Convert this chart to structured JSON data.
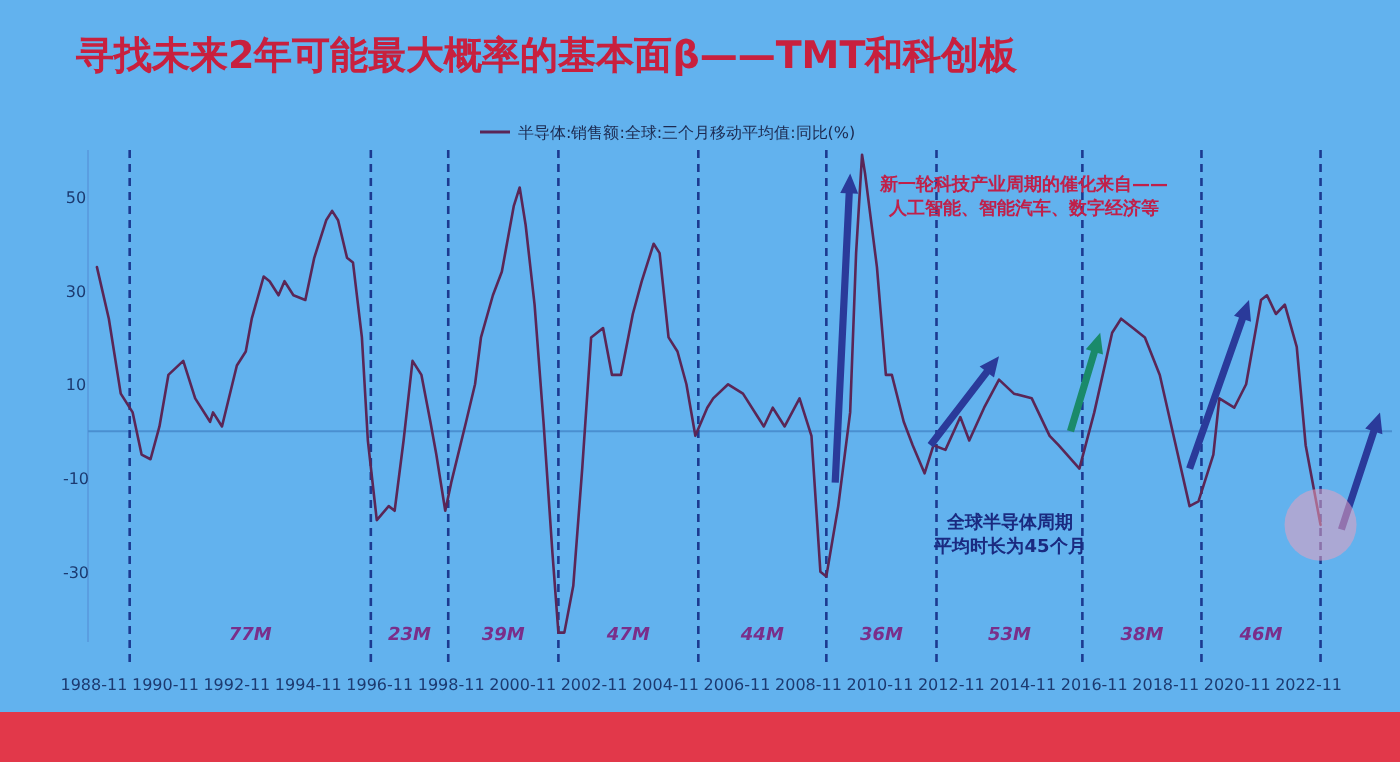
{
  "chart_data": {
    "type": "line",
    "title": "寻找未来2年可能最大概率的基本面β——TMT和科创板",
    "legend": "top",
    "series": [
      {
        "name": "半导体:销售额:全球:三个月移动平均值:同比(%)",
        "color": "#5a2656",
        "x": [
          "1988-12",
          "1989-04",
          "1989-08",
          "1989-12",
          "1990-03",
          "1990-06",
          "1990-09",
          "1990-12",
          "1991-05",
          "1991-09",
          "1992-02",
          "1992-03",
          "1992-06",
          "1992-11",
          "1993-02",
          "1993-04",
          "1993-08",
          "1993-10",
          "1994-01",
          "1994-03",
          "1994-06",
          "1994-10",
          "1995-01",
          "1995-05",
          "1995-07",
          "1995-09",
          "1995-12",
          "1996-02",
          "1996-05",
          "1996-07",
          "1996-10",
          "1997-02",
          "1997-04",
          "1997-07",
          "1997-10",
          "1998-01",
          "1998-04",
          "1998-06",
          "1998-09",
          "1998-11",
          "1999-04",
          "1999-07",
          "1999-09",
          "2000-01",
          "2000-04",
          "2000-08",
          "2000-10",
          "2000-12",
          "2001-03",
          "2001-06",
          "2001-09",
          "2001-11",
          "2002-01",
          "2002-04",
          "2002-07",
          "2002-10",
          "2003-02",
          "2003-05",
          "2003-08",
          "2003-12",
          "2004-03",
          "2004-07",
          "2004-09",
          "2004-12",
          "2005-03",
          "2005-06",
          "2005-09",
          "2006-01",
          "2006-03",
          "2006-08",
          "2007-01",
          "2007-08",
          "2007-11",
          "2008-03",
          "2008-08",
          "2008-12",
          "2009-03",
          "2009-05",
          "2009-09",
          "2010-01",
          "2010-03",
          "2010-05",
          "2010-06",
          "2010-10",
          "2011-01",
          "2011-03",
          "2011-07",
          "2011-10",
          "2012-02",
          "2012-05",
          "2012-09",
          "2013-02",
          "2013-05",
          "2013-10",
          "2014-03",
          "2014-08",
          "2015-02",
          "2015-08",
          "2015-11",
          "2016-06",
          "2016-11",
          "2017-05",
          "2017-08",
          "2017-12",
          "2018-04",
          "2018-09",
          "2019-02",
          "2019-07",
          "2019-10",
          "2020-03",
          "2020-05",
          "2020-10",
          "2021-02",
          "2021-07",
          "2021-09",
          "2021-12",
          "2022-03",
          "2022-07",
          "2022-10",
          "2023-03"
        ],
        "values": [
          35,
          24,
          8,
          4,
          -5,
          -6,
          1,
          12,
          15,
          7,
          2,
          4,
          1,
          14,
          17,
          24,
          33,
          32,
          29,
          32,
          29,
          28,
          37,
          45,
          47,
          45,
          37,
          36,
          20,
          -2,
          -19,
          -16,
          -17,
          -2,
          15,
          12,
          2,
          -5,
          -17,
          -11,
          2,
          10,
          20,
          29,
          34,
          48,
          52,
          44,
          27,
          2,
          -26,
          -43,
          -43,
          -33,
          -8,
          20,
          22,
          12,
          12,
          25,
          32,
          40,
          38,
          20,
          17,
          10,
          -1,
          5,
          7,
          10,
          8,
          1,
          5,
          1,
          7,
          -1,
          -30,
          -31,
          -16,
          4,
          38,
          59,
          55,
          35,
          12,
          12,
          2,
          -3,
          -9,
          -3,
          -4,
          3,
          -2,
          5,
          11,
          8,
          7,
          -1,
          -3,
          -8,
          4,
          21,
          24,
          22,
          20,
          12,
          -2,
          -16,
          -15,
          -5,
          7,
          5,
          10,
          28,
          29,
          25,
          27,
          18,
          -3,
          -20
        ]
      }
    ],
    "xlim": [
      "1988-09",
      "2025-03"
    ],
    "xticks": [
      "1988-11",
      "1990-11",
      "1992-11",
      "1994-11",
      "1996-11",
      "1998-11",
      "2000-11",
      "2002-11",
      "2004-11",
      "2006-11",
      "2008-11",
      "2010-11",
      "2012-11",
      "2014-11",
      "2016-11",
      "2018-11",
      "2020-11",
      "2022-11"
    ],
    "ylim": [
      -45,
      60
    ],
    "yticks": [
      50,
      30,
      10,
      -10,
      -30
    ],
    "ref_lines": [
      {
        "axis": "y",
        "value": 0,
        "color": "#4a8fd0"
      },
      {
        "axis": "x",
        "value": "1989-11",
        "line_style": "dashed"
      },
      {
        "axis": "x",
        "value": "1996-08",
        "line_style": "dashed"
      },
      {
        "axis": "x",
        "value": "1998-10",
        "line_style": "dashed"
      },
      {
        "axis": "x",
        "value": "2001-11",
        "line_style": "dashed"
      },
      {
        "axis": "x",
        "value": "2005-10",
        "line_style": "dashed"
      },
      {
        "axis": "x",
        "value": "2009-05",
        "line_style": "dashed"
      },
      {
        "axis": "x",
        "value": "2012-06",
        "line_style": "dashed"
      },
      {
        "axis": "x",
        "value": "2016-07",
        "line_style": "dashed"
      },
      {
        "axis": "x",
        "value": "2019-11",
        "line_style": "dashed"
      },
      {
        "axis": "x",
        "value": "2023-03",
        "line_style": "dashed"
      }
    ],
    "annotations": [
      "新一轮科技产业周期的催化来自——",
      "人工智能、智能汽车、数字经济等",
      "全球半导体周期",
      "平均时长为45个月",
      "77M",
      "23M",
      "39M",
      "47M",
      "44M",
      "36M",
      "53M",
      "38M",
      "46M"
    ]
  }
}
